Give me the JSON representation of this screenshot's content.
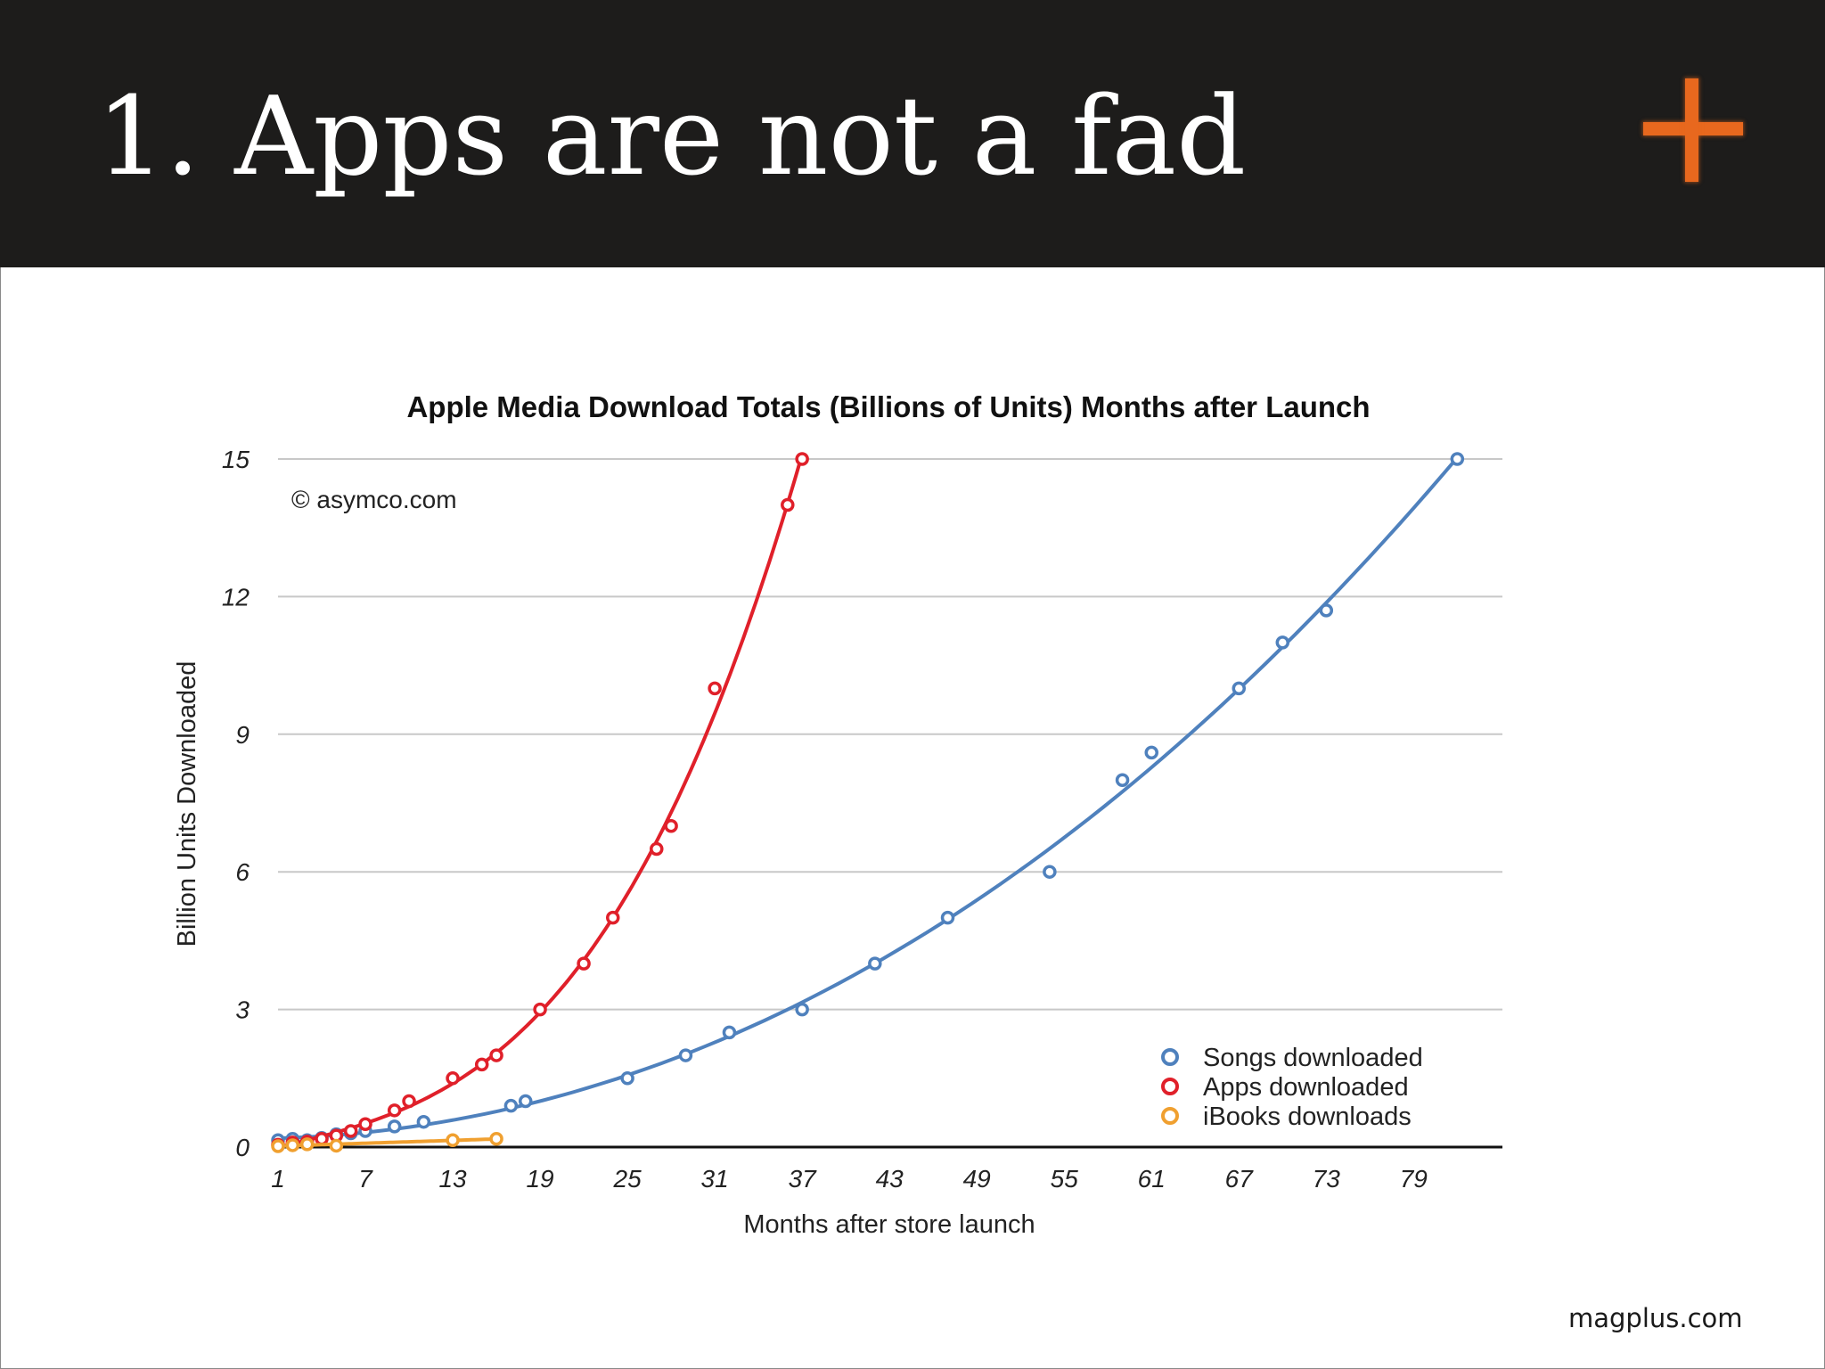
{
  "slide": {
    "title": "1. Apps are not a fad",
    "logo_icon": "plus-icon",
    "logo_color": "#e8681e",
    "footer": "magplus.com"
  },
  "chart_data": {
    "type": "scatter",
    "title": "Apple Media Download Totals (Billions of Units) Months after Launch",
    "annotation": "© asymco.com",
    "xlabel": "Months after store launch",
    "ylabel": "Billion Units Downloaded",
    "xlim": [
      1,
      84
    ],
    "ylim": [
      0,
      15
    ],
    "xticks": [
      1,
      7,
      13,
      19,
      25,
      31,
      37,
      43,
      49,
      55,
      61,
      67,
      73,
      79
    ],
    "yticks": [
      0,
      3,
      6,
      9,
      12,
      15
    ],
    "grid": "horizontal",
    "legend_position": "bottom-right",
    "trendlines": true,
    "series": [
      {
        "name": "Songs  downloaded",
        "color": "#4f81bd",
        "points": [
          [
            1,
            0.15
          ],
          [
            2,
            0.18
          ],
          [
            3,
            0.15
          ],
          [
            4,
            0.2
          ],
          [
            5,
            0.28
          ],
          [
            6,
            0.3
          ],
          [
            7,
            0.35
          ],
          [
            9,
            0.45
          ],
          [
            11,
            0.55
          ],
          [
            17,
            0.9
          ],
          [
            18,
            1.0
          ],
          [
            25,
            1.5
          ],
          [
            29,
            2.0
          ],
          [
            32,
            2.5
          ],
          [
            37,
            3.0
          ],
          [
            42,
            4.0
          ],
          [
            47,
            5.0
          ],
          [
            54,
            6.0
          ],
          [
            59,
            8.0
          ],
          [
            61,
            8.6
          ],
          [
            67,
            10.0
          ],
          [
            70,
            11.0
          ],
          [
            73,
            11.7
          ],
          [
            82,
            15.0
          ]
        ]
      },
      {
        "name": "Apps downloaded",
        "color": "#e0202a",
        "points": [
          [
            1,
            0.05
          ],
          [
            2,
            0.1
          ],
          [
            3,
            0.12
          ],
          [
            4,
            0.18
          ],
          [
            5,
            0.25
          ],
          [
            6,
            0.35
          ],
          [
            7,
            0.5
          ],
          [
            9,
            0.8
          ],
          [
            10,
            1.0
          ],
          [
            13,
            1.5
          ],
          [
            15,
            1.8
          ],
          [
            16,
            2.0
          ],
          [
            19,
            3.0
          ],
          [
            22,
            4.0
          ],
          [
            24,
            5.0
          ],
          [
            27,
            6.5
          ],
          [
            28,
            7.0
          ],
          [
            31,
            10.0
          ],
          [
            36,
            14.0
          ],
          [
            37,
            15.0
          ]
        ]
      },
      {
        "name": "iBooks downloads",
        "color": "#f0a030",
        "points": [
          [
            1,
            0.02
          ],
          [
            2,
            0.04
          ],
          [
            3,
            0.06
          ],
          [
            5,
            0.03
          ],
          [
            13,
            0.15
          ],
          [
            16,
            0.18
          ]
        ]
      }
    ]
  }
}
